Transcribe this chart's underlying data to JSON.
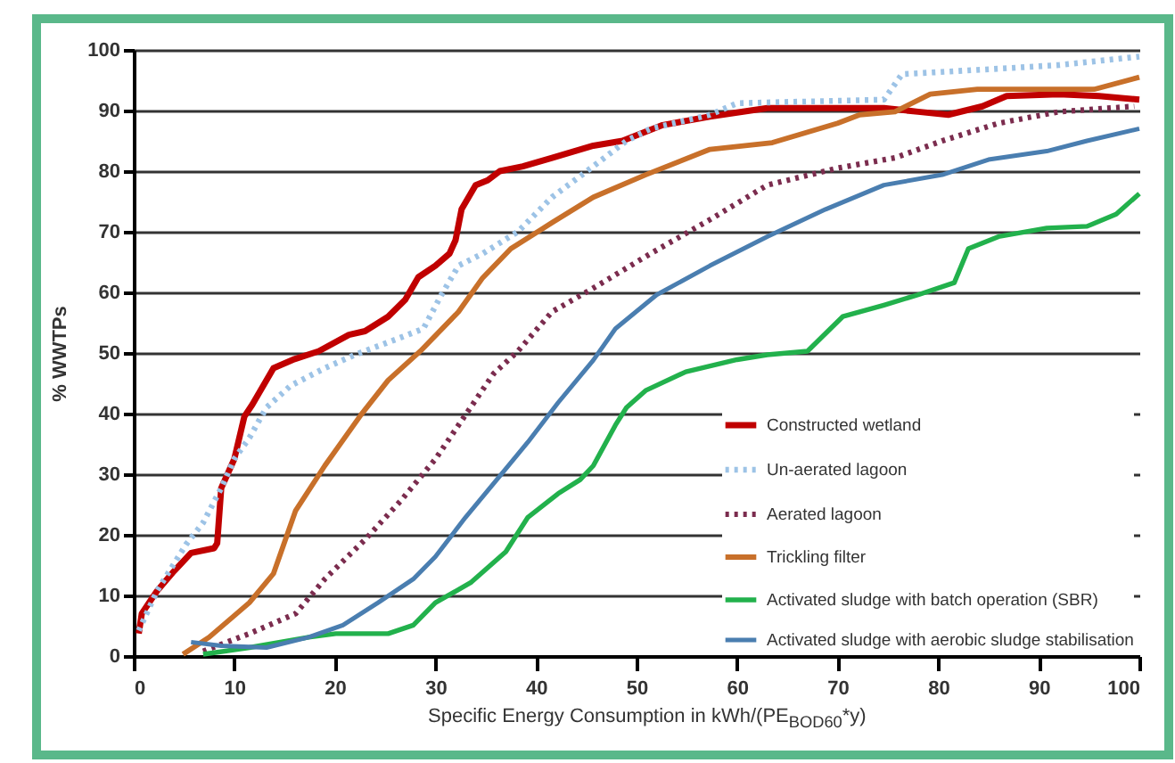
{
  "chart_data": {
    "type": "line",
    "xlabel": "Specific Energy Consumption in kWh/(PE$_{BOD60}$*y)",
    "ylabel": "% WWTPs",
    "xlim": [
      0,
      100
    ],
    "ylim": [
      0,
      100
    ],
    "xticks": [
      0,
      10,
      20,
      30,
      40,
      50,
      60,
      70,
      80,
      90,
      100
    ],
    "yticks": [
      0,
      10,
      20,
      30,
      40,
      50,
      60,
      70,
      80,
      90,
      100
    ],
    "grid": "y",
    "legend": "bottom right",
    "marker": "none",
    "series": [
      {
        "name": "Constructed wetland",
        "color": "#c00000",
        "line_style": "solid",
        "x": [
          0.5,
          0.8,
          2.3,
          4,
          5.7,
          8,
          8.3,
          8.7,
          10,
          11,
          11.8,
          13.9,
          16,
          18.4,
          21.4,
          23,
          25.3,
          27,
          28.3,
          30,
          31.4,
          32,
          32.6,
          34,
          35.2,
          36.4,
          38.7,
          41.6,
          45.7,
          48.6,
          52.6,
          57.3,
          63,
          74.6,
          78,
          81,
          84.4,
          86.8,
          92,
          96,
          100
        ],
        "values": [
          3.7,
          7,
          10.7,
          14,
          17,
          17.8,
          18.6,
          27.7,
          32.5,
          39.5,
          41.5,
          47.5,
          49,
          50.3,
          53,
          53.6,
          56,
          58.8,
          62.5,
          64.4,
          66.4,
          68.6,
          73.7,
          77.7,
          78.5,
          80,
          80.8,
          82.2,
          84.2,
          85,
          87.6,
          89,
          90.4,
          90.4,
          89.8,
          89.3,
          90.7,
          92.4,
          92.7,
          92.4,
          91.8
        ]
      },
      {
        "name": "Un-aerated lagoon",
        "color": "#9dc3e6",
        "line_style": "dotted",
        "x": [
          0.5,
          2.3,
          5.2,
          6.9,
          8.7,
          10,
          11.5,
          13.2,
          15.6,
          19,
          22,
          26,
          28.8,
          30.6,
          32.3,
          34.7,
          38.2,
          41.6,
          45.7,
          49,
          51.4,
          57.3,
          60,
          74.6,
          76.4,
          86,
          92,
          100
        ],
        "values": [
          4.2,
          10.7,
          18.4,
          22,
          27.7,
          32.5,
          36,
          41,
          44.6,
          47.5,
          49.7,
          52.2,
          54,
          59.6,
          64.4,
          66.4,
          70,
          75.7,
          80.8,
          85,
          87,
          89.3,
          91.2,
          91.8,
          96,
          96.9,
          97.5,
          98.9
        ]
      },
      {
        "name": "Aerated lagoon",
        "color": "#7b2c4e",
        "line_style": "dotted",
        "x": [
          6.9,
          11.5,
          16.1,
          19,
          23,
          26.6,
          30,
          33,
          35.8,
          38.2,
          41.6,
          45.7,
          51.4,
          57.3,
          63,
          70,
          75.7,
          80.4,
          86,
          92,
          99.5
        ],
        "values": [
          0.8,
          3.7,
          7,
          12.7,
          19.2,
          25.7,
          32.5,
          39.8,
          46.6,
          50.3,
          56.8,
          60.7,
          66.4,
          72,
          77.7,
          80.5,
          82.2,
          85,
          87.9,
          89.8,
          90.7
        ]
      },
      {
        "name": "Trickling filter",
        "color": "#c8702a",
        "line_style": "solid",
        "x": [
          4.9,
          7.5,
          11.5,
          13.9,
          16.1,
          19,
          22.6,
          25.3,
          28.5,
          32.3,
          34.7,
          37.5,
          41.6,
          45.7,
          50.9,
          57.3,
          63.5,
          70,
          72.2,
          75.7,
          79.2,
          83.9,
          95.5,
          100
        ],
        "values": [
          0.3,
          3.1,
          8.8,
          13.6,
          24,
          31.4,
          39.8,
          45.5,
          50.3,
          56.8,
          62.4,
          67.2,
          71.5,
          75.7,
          79.4,
          83.6,
          84.7,
          87.9,
          89.3,
          89.8,
          92.7,
          93.5,
          93.5,
          95.5
        ]
      },
      {
        "name": "Activated sludge with batch operation (SBR)",
        "color": "#22b14c",
        "line_style": "solid",
        "x": [
          6.9,
          11.5,
          17.4,
          20.1,
          25.3,
          27.8,
          30,
          33.5,
          37,
          39.2,
          42.2,
          44.4,
          45.7,
          47.9,
          49,
          50.9,
          54.9,
          60,
          63,
          67,
          70.5,
          74.6,
          78,
          81.6,
          83,
          86,
          90.8,
          94.8,
          97.7,
          100
        ],
        "values": [
          0.3,
          1.4,
          3.1,
          3.7,
          3.7,
          5.1,
          8.8,
          12.1,
          17.2,
          22.9,
          26.8,
          29.1,
          31.4,
          38.1,
          41,
          43.8,
          46.9,
          48.9,
          49.7,
          50.3,
          56,
          57.9,
          59.6,
          61.6,
          67.2,
          69.2,
          70.6,
          70.9,
          72.9,
          76.3
        ]
      },
      {
        "name": "Activated sludge with aerobic sludge stabilisation",
        "color": "#4a7eb0",
        "line_style": "solid",
        "x": [
          5.7,
          8.7,
          13.2,
          17.4,
          20.8,
          24.3,
          27.8,
          30,
          33,
          36.4,
          39.2,
          42.2,
          45.7,
          47.9,
          52,
          57.3,
          63,
          68.8,
          74.6,
          80.4,
          85,
          90.8,
          94.8,
          100
        ],
        "values": [
          2.3,
          1.7,
          1.4,
          3.1,
          5.1,
          8.8,
          12.7,
          16.4,
          22.9,
          29.7,
          35.3,
          41.8,
          48.8,
          54,
          59.6,
          64.4,
          69.2,
          73.7,
          77.7,
          79.4,
          81.9,
          83.3,
          85,
          87
        ]
      }
    ]
  }
}
